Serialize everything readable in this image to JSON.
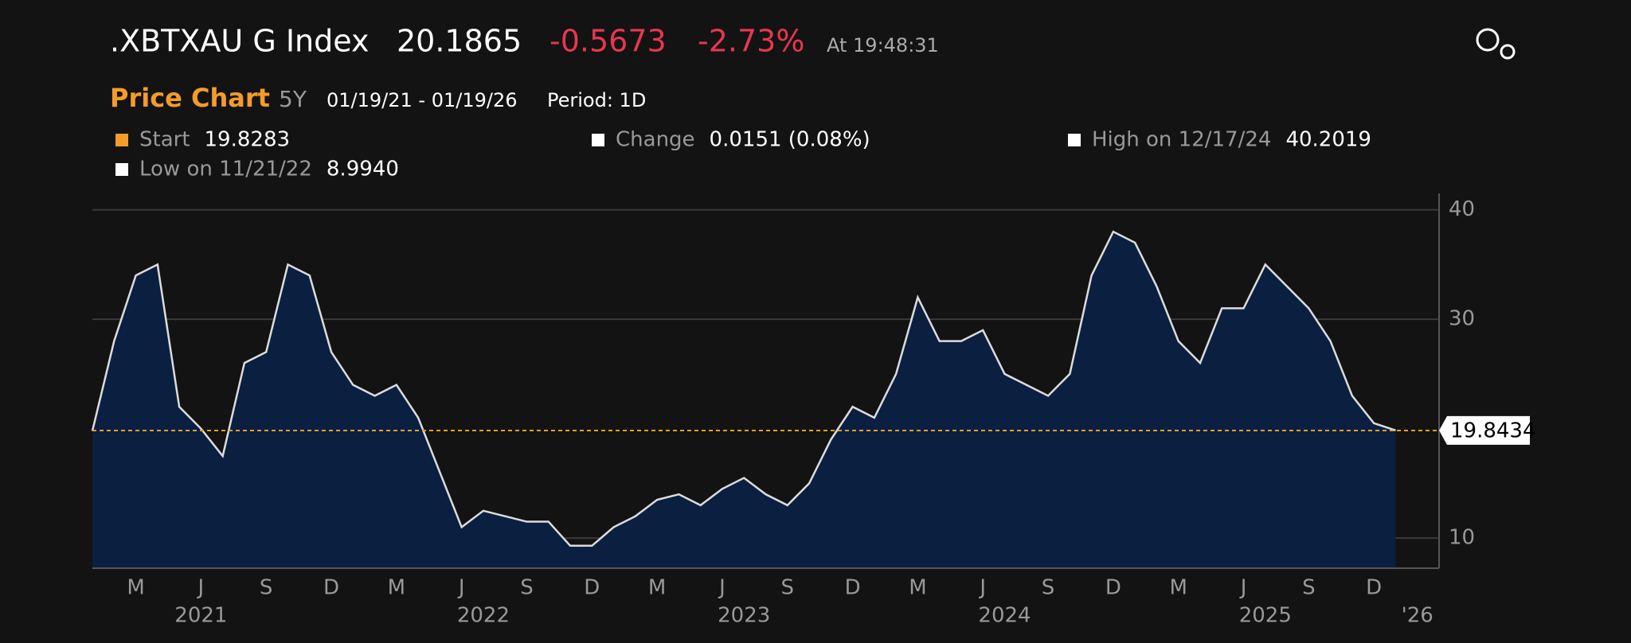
{
  "header": {
    "title": ".XBTXAU G Index",
    "price": "20.1865",
    "change": "-0.5673",
    "change_pct": "-2.73%",
    "time": "At 19:48:31",
    "section": "Price Chart",
    "range": "5Y",
    "dates": "01/19/21 - 01/19/26",
    "period": "Period: 1D"
  },
  "chart_data": {
    "type": "area",
    "color": "#0b1f40",
    "line_color": "#dcdcdc",
    "stats": [
      {
        "label": "Start",
        "value": "19.8283",
        "color": "#f39c2b"
      },
      {
        "label": "Change",
        "value": "0.0151 (0.08%)",
        "color": "#ffffff"
      },
      {
        "label": "High on 12/17/24",
        "value": "40.2019",
        "color": "#ffffff"
      },
      {
        "label": "Low on 11/21/22",
        "value": "8.9940",
        "color": "#ffffff"
      }
    ],
    "reference_line": 19.8283,
    "x": [
      "2021-01",
      "2021-02",
      "2021-03",
      "2021-04",
      "2021-05",
      "2021-06",
      "2021-07",
      "2021-08",
      "2021-09",
      "2021-10",
      "2021-11",
      "2021-12",
      "2022-01",
      "2022-02",
      "2022-03",
      "2022-04",
      "2022-05",
      "2022-06",
      "2022-07",
      "2022-08",
      "2022-09",
      "2022-10",
      "2022-11",
      "2022-12",
      "2023-01",
      "2023-02",
      "2023-03",
      "2023-04",
      "2023-05",
      "2023-06",
      "2023-07",
      "2023-08",
      "2023-09",
      "2023-10",
      "2023-11",
      "2023-12",
      "2024-01",
      "2024-02",
      "2024-03",
      "2024-04",
      "2024-05",
      "2024-06",
      "2024-07",
      "2024-08",
      "2024-09",
      "2024-10",
      "2024-11",
      "2024-12",
      "2025-01",
      "2025-02",
      "2025-03",
      "2025-04",
      "2025-05",
      "2025-06",
      "2025-07",
      "2025-08",
      "2025-09",
      "2025-10",
      "2025-11",
      "2025-12",
      "2026-01"
    ],
    "values": [
      19.8,
      28,
      34,
      35,
      22,
      20,
      17.5,
      26,
      27,
      35,
      34,
      27,
      24,
      23,
      24,
      21,
      16,
      11,
      12.5,
      12,
      11.5,
      11.5,
      9.3,
      9.3,
      11,
      12,
      13.5,
      14,
      13,
      14.5,
      15.5,
      14,
      13,
      15,
      19,
      22,
      21,
      25,
      32,
      28,
      28,
      29,
      25,
      24,
      23,
      25,
      34,
      38,
      37,
      33,
      28,
      26,
      31,
      31,
      35,
      33,
      31,
      28,
      23,
      20.5,
      19.8434
    ],
    "xlim": [
      "2021-01",
      "2026-03"
    ],
    "ylim": [
      7.25,
      41.5
    ],
    "yticks": [
      10,
      30,
      40
    ],
    "xticks": [
      {
        "value": "2021-03",
        "label": "M"
      },
      {
        "value": "2021-06",
        "label": "J"
      },
      {
        "value": "2021-09",
        "label": "S"
      },
      {
        "value": "2021-12",
        "label": "D"
      },
      {
        "value": "2022-03",
        "label": "M"
      },
      {
        "value": "2022-06",
        "label": "J"
      },
      {
        "value": "2022-09",
        "label": "S"
      },
      {
        "value": "2022-12",
        "label": "D"
      },
      {
        "value": "2023-03",
        "label": "M"
      },
      {
        "value": "2023-06",
        "label": "J"
      },
      {
        "value": "2023-09",
        "label": "S"
      },
      {
        "value": "2023-12",
        "label": "D"
      },
      {
        "value": "2024-03",
        "label": "M"
      },
      {
        "value": "2024-06",
        "label": "J"
      },
      {
        "value": "2024-09",
        "label": "S"
      },
      {
        "value": "2024-12",
        "label": "D"
      },
      {
        "value": "2025-03",
        "label": "M"
      },
      {
        "value": "2025-06",
        "label": "J"
      },
      {
        "value": "2025-09",
        "label": "S"
      },
      {
        "value": "2025-12",
        "label": "D"
      }
    ],
    "year_ticks": [
      {
        "value": "2021-06",
        "label": "2021"
      },
      {
        "value": "2022-07",
        "label": "2022"
      },
      {
        "value": "2023-07",
        "label": "2023"
      },
      {
        "value": "2024-07",
        "label": "2024"
      },
      {
        "value": "2025-07",
        "label": "2025"
      },
      {
        "value": "2026-02",
        "label": "'26"
      }
    ],
    "grid": true
  }
}
